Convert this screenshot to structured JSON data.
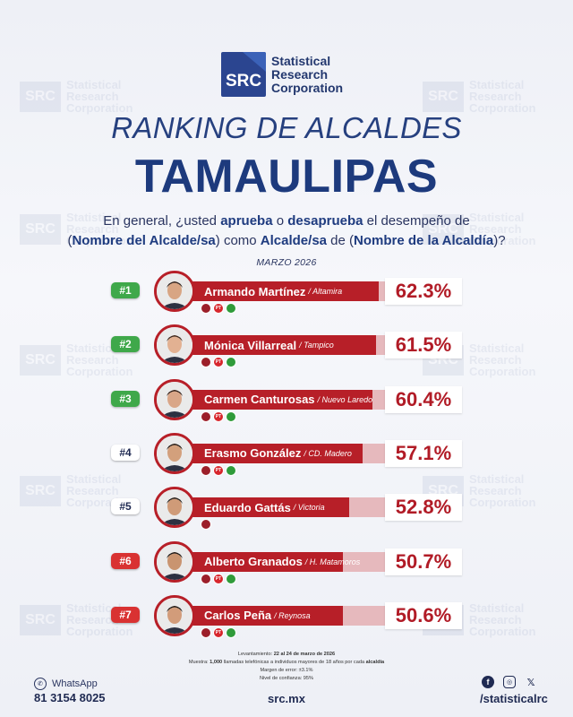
{
  "brand": {
    "logo_mark": "SRC",
    "logo_name_1": "Statistical",
    "logo_name_2": "Research",
    "logo_name_3": "Corporation"
  },
  "header": {
    "title": "RANKING DE ALCALDES",
    "state": "TAMAULIPAS",
    "question_p1": "En general, ¿usted ",
    "question_b1": "aprueba",
    "question_p2": " o ",
    "question_b2": "desaprueba",
    "question_p3": " el desempeño de",
    "question_p4": "(",
    "question_b3": "Nombre del Alcalde/sa",
    "question_p5": ") como ",
    "question_b4": "Alcalde/sa",
    "question_p6": " de (",
    "question_b5": "Nombre de la Alcaldía",
    "question_p7": ")?",
    "period": "MARZO 2026"
  },
  "chart_data": {
    "type": "bar",
    "orientation": "horizontal",
    "title": "RANKING DE ALCALDES TAMAULIPAS",
    "unit": "%",
    "xlim": [
      0,
      100
    ],
    "categories": [
      "Armando Martínez",
      "Mónica Villarreal",
      "Carmen Canturosas",
      "Erasmo González",
      "Eduardo Gattás",
      "Alberto Granados",
      "Carlos Peña"
    ],
    "values": [
      62.3,
      61.5,
      60.4,
      57.1,
      52.8,
      50.7,
      50.6
    ],
    "rows": [
      {
        "rank": "#1",
        "name": "Armando Martínez",
        "city": "/ Altamira",
        "value": 62.3,
        "label": "62.3%",
        "badge_color": "#3fa84a",
        "badge_text": "#ffffff",
        "parties": [
          "morena",
          "pt",
          "pvem"
        ]
      },
      {
        "rank": "#2",
        "name": "Mónica Villarreal",
        "city": "/ Tampico",
        "value": 61.5,
        "label": "61.5%",
        "badge_color": "#3fa84a",
        "badge_text": "#ffffff",
        "parties": [
          "morena",
          "pt",
          "pvem"
        ]
      },
      {
        "rank": "#3",
        "name": "Carmen Canturosas",
        "city": "/ Nuevo Laredo",
        "value": 60.4,
        "label": "60.4%",
        "badge_color": "#3fa84a",
        "badge_text": "#ffffff",
        "parties": [
          "morena",
          "pt",
          "pvem"
        ]
      },
      {
        "rank": "#4",
        "name": "Erasmo González",
        "city": "/ CD. Madero",
        "value": 57.1,
        "label": "57.1%",
        "badge_color": "#ffffff",
        "badge_text": "#1f2a52",
        "parties": [
          "morena",
          "pt",
          "pvem"
        ]
      },
      {
        "rank": "#5",
        "name": "Eduardo Gattás",
        "city": "/ Victoria",
        "value": 52.8,
        "label": "52.8%",
        "badge_color": "#ffffff",
        "badge_text": "#1f2a52",
        "parties": [
          "morena"
        ]
      },
      {
        "rank": "#6",
        "name": "Alberto Granados",
        "city": "/ H. Matamoros",
        "value": 50.7,
        "label": "50.7%",
        "badge_color": "#d93232",
        "badge_text": "#ffffff",
        "parties": [
          "morena",
          "pt",
          "pvem"
        ]
      },
      {
        "rank": "#7",
        "name": "Carlos Peña",
        "city": "/ Reynosa",
        "value": 50.6,
        "label": "50.6%",
        "badge_color": "#d93232",
        "badge_text": "#ffffff",
        "parties": [
          "morena",
          "pt",
          "pvem"
        ]
      }
    ],
    "colors": {
      "bar": "#b71f28",
      "track": "#e6b9bd",
      "value_text": "#b11b26"
    }
  },
  "footnote": {
    "line1_a": "Levantamiento: ",
    "line1_b": "22 al 24 de marzo de 2026",
    "line2_a": "Muestra: ",
    "line2_b": "1,000",
    "line2_c": " llamadas telefónicas a individuos mayores de 18 años por cada ",
    "line2_d": "alcaldía",
    "line3": "Margen de error: ±3.1%",
    "line4": "Nivel de confianza: 95%"
  },
  "footer": {
    "whatsapp_label": "WhatsApp",
    "phone": "81 3154 8025",
    "website": "src.mx",
    "handle": "/statisticalrc",
    "social_icons": [
      "facebook-icon",
      "instagram-icon",
      "x-icon"
    ]
  }
}
